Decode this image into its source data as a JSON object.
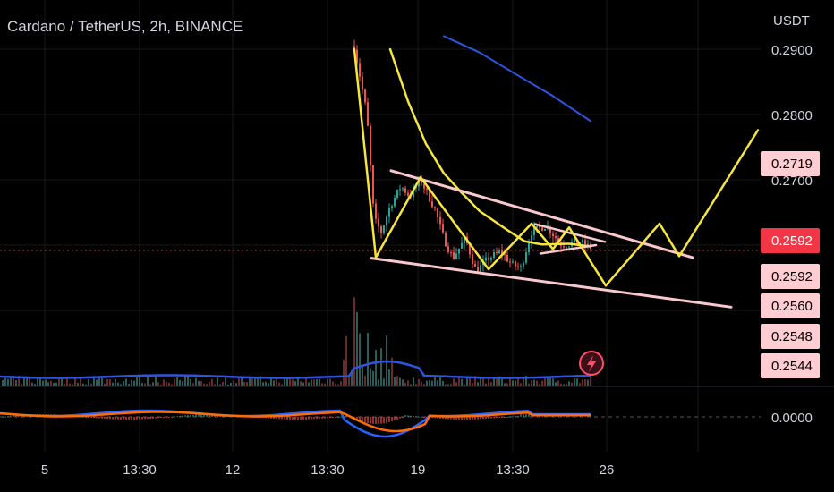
{
  "header": {
    "title": "Cardano / TetherUS, 2h, BINANCE",
    "currency": "USDT"
  },
  "colors": {
    "background": "#000000",
    "yellow": "#f5e63c",
    "channel": "#f8c8cc",
    "blue": "#2f55e0",
    "bullish": "#26a69a",
    "bearish": "#ef5350",
    "price_line": "#ef5350",
    "price_badge": "#f23645",
    "badge": "#ffcdd2",
    "macd": "#2962ff",
    "signal": "#ff6d00"
  },
  "chart_data": {
    "type": "candlestick",
    "title": "Cardano / TetherUS, 2h, BINANCE",
    "ylabel": "USDT",
    "ylim": [
      0.253,
      0.293
    ],
    "y_ticks": [
      {
        "value": 0.29,
        "label": "0.2900"
      },
      {
        "value": 0.28,
        "label": "0.2800"
      },
      {
        "value": 0.27,
        "label": "0.2700"
      }
    ],
    "x_ticks": [
      "5",
      "13:30",
      "12",
      "13:30",
      "19",
      "13:30",
      "26"
    ],
    "price_badges": [
      {
        "value": 0.2719,
        "label": "0.2719",
        "kind": "badge"
      },
      {
        "value": 0.2592,
        "label": "0.2592",
        "kind": "current"
      },
      {
        "value": 0.2592,
        "label": "0.2592",
        "kind": "badge"
      },
      {
        "value": 0.256,
        "label": "0.2560",
        "kind": "badge"
      },
      {
        "value": 0.2548,
        "label": "0.2548",
        "kind": "badge"
      },
      {
        "value": 0.2544,
        "label": "0.2544",
        "kind": "badge"
      }
    ],
    "indicator_label": "0.0000",
    "current_price": 0.2592,
    "drawings": {
      "projection_path": [
        {
          "t": 0,
          "p": 0.29
        },
        {
          "t": 24,
          "p": 0.2581
        },
        {
          "t": 74,
          "p": 0.2704
        },
        {
          "t": 150,
          "p": 0.2563
        },
        {
          "t": 198,
          "p": 0.2633
        },
        {
          "t": 222,
          "p": 0.2594
        },
        {
          "t": 240,
          "p": 0.2627
        },
        {
          "t": 281,
          "p": 0.2538
        },
        {
          "t": 341,
          "p": 0.2633
        },
        {
          "t": 363,
          "p": 0.2583
        },
        {
          "t": 451,
          "p": 0.2776
        }
      ],
      "channel_upper": [
        {
          "t": 41,
          "p": 0.2714
        },
        {
          "t": 378,
          "p": 0.2581
        }
      ],
      "channel_lower": [
        {
          "t": 19,
          "p": 0.258
        },
        {
          "t": 421,
          "p": 0.2505
        }
      ],
      "flag": [
        {
          "t": 202,
          "p": 0.2632
        },
        {
          "t": 280,
          "p": 0.2605
        },
        {
          "t": 208,
          "p": 0.2587
        },
        {
          "t": 270,
          "p": 0.26
        }
      ],
      "yellow_ma": [
        {
          "t": 40,
          "p": 0.29
        },
        {
          "t": 60,
          "p": 0.282
        },
        {
          "t": 80,
          "p": 0.2755
        },
        {
          "t": 100,
          "p": 0.271
        },
        {
          "t": 120,
          "p": 0.268
        },
        {
          "t": 140,
          "p": 0.2652
        },
        {
          "t": 170,
          "p": 0.2624
        },
        {
          "t": 190,
          "p": 0.2606
        },
        {
          "t": 210,
          "p": 0.2601
        },
        {
          "t": 240,
          "p": 0.2602
        },
        {
          "t": 264,
          "p": 0.2598
        }
      ],
      "blue_ma": [
        {
          "t": 100,
          "p": 0.292
        },
        {
          "t": 140,
          "p": 0.2895
        },
        {
          "t": 180,
          "p": 0.2862
        },
        {
          "t": 220,
          "p": 0.283
        },
        {
          "t": 264,
          "p": 0.279
        }
      ]
    }
  }
}
